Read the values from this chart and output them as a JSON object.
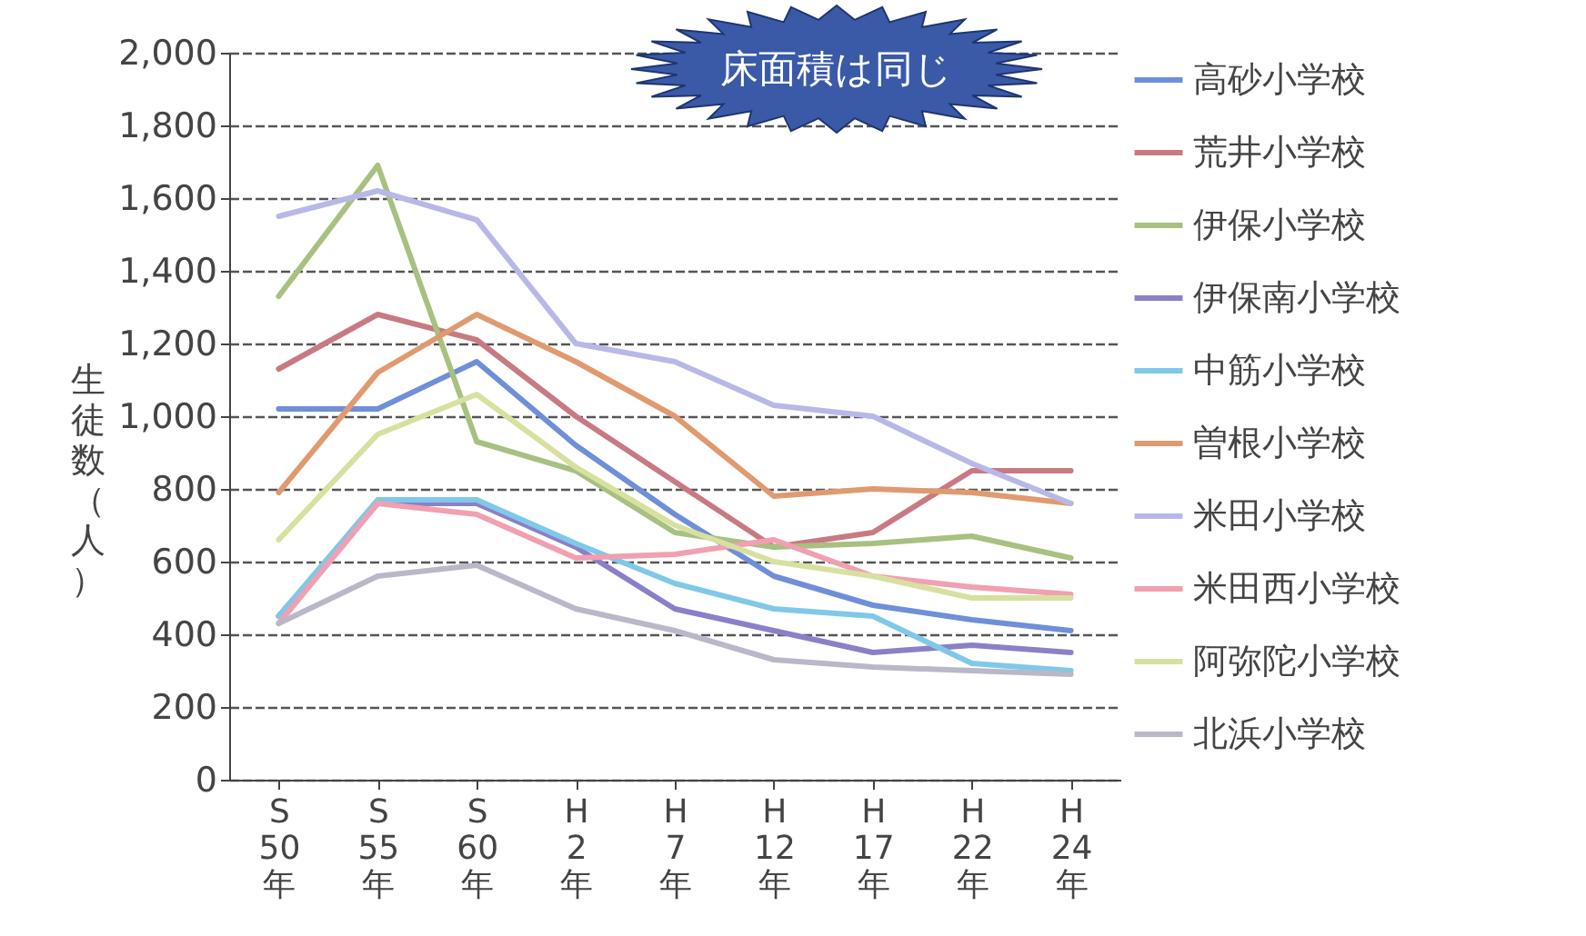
{
  "chart_data": {
    "type": "line",
    "ylabel": "生徒数（人）",
    "annotations": [
      "床面積は同じ"
    ],
    "categories": [
      "S\n50\n年",
      "S\n55\n年",
      "S\n60\n年",
      "H\n2\n年",
      "H\n7\n年",
      "H\n12\n年",
      "H\n17\n年",
      "H\n22\n年",
      "H\n24\n年"
    ],
    "series": [
      {
        "name": "高砂小学校",
        "color": "#6f8fd8",
        "values": [
          1020,
          1020,
          1150,
          920,
          730,
          560,
          480,
          440,
          410
        ]
      },
      {
        "name": "荒井小学校",
        "color": "#c87a82",
        "values": [
          1130,
          1280,
          1210,
          1000,
          820,
          640,
          680,
          850,
          850
        ]
      },
      {
        "name": "伊保小学校",
        "color": "#a8c080",
        "values": [
          1330,
          1690,
          930,
          850,
          680,
          640,
          650,
          670,
          610
        ]
      },
      {
        "name": "伊保南小学校",
        "color": "#8a80c8",
        "values": [
          450,
          760,
          760,
          640,
          470,
          410,
          350,
          370,
          350
        ]
      },
      {
        "name": "中筋小学校",
        "color": "#80c8e8",
        "values": [
          450,
          770,
          770,
          650,
          540,
          470,
          450,
          320,
          300
        ]
      },
      {
        "name": "曽根小学校",
        "color": "#e09a70",
        "values": [
          790,
          1120,
          1280,
          1150,
          1000,
          780,
          800,
          790,
          760
        ]
      },
      {
        "name": "米田小学校",
        "color": "#b8b8e8",
        "values": [
          1550,
          1620,
          1540,
          1200,
          1150,
          1030,
          1000,
          870,
          760
        ]
      },
      {
        "name": "米田西小学校",
        "color": "#f0a0b0",
        "values": [
          430,
          760,
          730,
          610,
          620,
          660,
          560,
          530,
          510
        ]
      },
      {
        "name": "阿弥陀小学校",
        "color": "#d8e0a0",
        "values": [
          660,
          950,
          1060,
          860,
          700,
          600,
          560,
          500,
          500
        ]
      },
      {
        "name": "北浜小学校",
        "color": "#b8b8c8",
        "values": [
          430,
          560,
          590,
          470,
          410,
          330,
          310,
          300,
          290
        ]
      }
    ],
    "ylim": [
      0,
      2000
    ],
    "yticks": [
      0,
      200,
      400,
      600,
      800,
      {
        "value": 1000,
        "label": "1,000"
      },
      {
        "value": 1200,
        "label": "1,200"
      },
      {
        "value": 1400,
        "label": "1,400"
      },
      {
        "value": 1600,
        "label": "1,600"
      },
      {
        "value": 1800,
        "label": "1,800"
      },
      {
        "value": 2000,
        "label": "2,000"
      }
    ],
    "grid": "y",
    "legend": "right",
    "marker": "none",
    "line_style": "solid"
  }
}
